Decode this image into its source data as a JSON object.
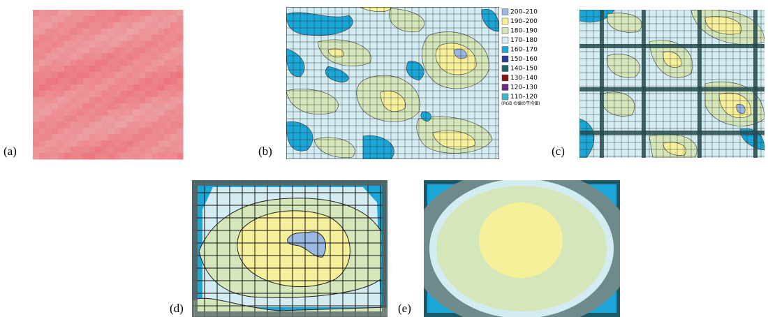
{
  "panels": [
    {
      "label": "(a)"
    },
    {
      "label": "(b)"
    },
    {
      "label": "(c)"
    },
    {
      "label": "(d)"
    },
    {
      "label": "(e)"
    }
  ],
  "legend": {
    "entries": [
      {
        "label": "200–210",
        "color": "#9ab8e2"
      },
      {
        "label": "190–200",
        "color": "#f6f09a"
      },
      {
        "label": "180–190",
        "color": "#d5e6bb"
      },
      {
        "label": "170–180",
        "color": "#d3ecf2"
      },
      {
        "label": "160–170",
        "color": "#1ba6d8"
      },
      {
        "label": "150–160",
        "color": "#2b3b98"
      },
      {
        "label": "140–150",
        "color": "#1b6666"
      },
      {
        "label": "130–140",
        "color": "#8c1212"
      },
      {
        "label": "120–130",
        "color": "#6b2a8c"
      },
      {
        "label": "110–120",
        "color": "#3ab8c6"
      }
    ],
    "note": "(RGB の値の平均値)"
  }
}
